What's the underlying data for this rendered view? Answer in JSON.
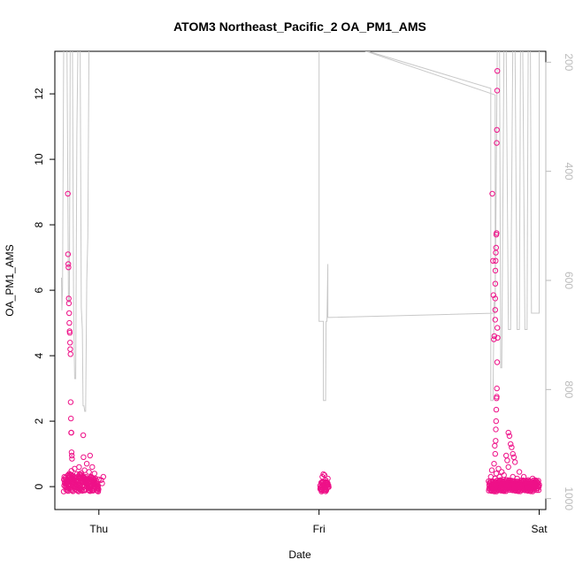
{
  "chart_data": {
    "type": "scatter",
    "title": "ATOM3 Northeast_Pacific_2 OA_PM1_AMS",
    "xlabel": "Date",
    "ylabel": "OA_PM1_AMS",
    "x_ticks": [
      "Thu",
      "Fri",
      "Sat"
    ],
    "xlim": [
      -0.2,
      2.03
    ],
    "ylim": [
      -0.7,
      13.3
    ],
    "y_ticks": [
      0,
      2,
      4,
      6,
      8,
      10,
      12
    ],
    "right_axis": {
      "ylim": [
        1020,
        180
      ],
      "ticks": [
        200,
        400,
        600,
        800,
        1000
      ],
      "color": "#bbbbbb",
      "reversed": true
    },
    "grid": false,
    "colors": {
      "points": "#ee1188",
      "pressure_line": "#c8c8c8"
    },
    "series": [
      {
        "points": [
          [
            -0.15,
            0.12
          ],
          [
            -0.14,
            0.35
          ],
          [
            -0.13,
            0.22
          ],
          [
            -0.125,
            0.48
          ],
          [
            -0.12,
            0.1
          ],
          [
            -0.115,
            0.3
          ],
          [
            -0.11,
            0.55
          ],
          [
            -0.105,
            0.2
          ],
          [
            -0.1,
            0.38
          ],
          [
            -0.095,
            0.15
          ],
          [
            -0.09,
            0.6
          ],
          [
            -0.085,
            0.25
          ],
          [
            -0.08,
            0.42
          ],
          [
            -0.075,
            0.05
          ],
          [
            -0.072,
            0.3
          ],
          [
            -0.141,
            8.95
          ],
          [
            -0.14,
            7.1
          ],
          [
            -0.139,
            6.8
          ],
          [
            -0.138,
            6.7
          ],
          [
            -0.137,
            5.75
          ],
          [
            -0.136,
            5.6
          ],
          [
            -0.135,
            5.3
          ],
          [
            -0.134,
            5.0
          ],
          [
            -0.133,
            4.75
          ],
          [
            -0.132,
            4.7
          ],
          [
            -0.131,
            4.4
          ],
          [
            -0.13,
            4.2
          ],
          [
            -0.129,
            4.05
          ],
          [
            -0.128,
            2.58
          ],
          [
            -0.127,
            2.08
          ],
          [
            -0.126,
            1.65
          ],
          [
            -0.125,
            1.65
          ],
          [
            -0.124,
            1.05
          ],
          [
            -0.123,
            0.95
          ],
          [
            -0.122,
            0.85
          ],
          [
            -0.07,
            0.9
          ],
          [
            -0.065,
            0.5
          ],
          [
            -0.06,
            0.3
          ],
          [
            -0.055,
            0.7
          ],
          [
            -0.05,
            0.2
          ],
          [
            -0.045,
            0.45
          ],
          [
            -0.04,
            0.95
          ],
          [
            -0.035,
            0.3
          ],
          [
            -0.03,
            0.6
          ],
          [
            -0.025,
            0.15
          ],
          [
            -0.02,
            0.4
          ],
          [
            -0.015,
            0.25
          ],
          [
            -0.01,
            0.1
          ],
          [
            -0.071,
            1.57
          ],
          [
            0.02,
            0.3
          ],
          [
            0.015,
            0.1
          ],
          [
            0.01,
            0.2
          ],
          [
            1.01,
            0.12
          ],
          [
            1.015,
            0.3
          ],
          [
            1.02,
            0.05
          ],
          [
            1.025,
            0.35
          ],
          [
            1.03,
            0.2
          ],
          [
            1.035,
            0.1
          ],
          [
            1.04,
            0.25
          ],
          [
            1.02,
            0.38
          ],
          [
            1.018,
            0.15
          ],
          [
            1.78,
            0.3
          ],
          [
            1.785,
            0.5
          ],
          [
            1.79,
            0.15
          ],
          [
            1.795,
            0.7
          ],
          [
            1.8,
            0.25
          ],
          [
            1.805,
            0.4
          ],
          [
            1.81,
            0.1
          ],
          [
            1.815,
            0.55
          ],
          [
            1.82,
            0.3
          ],
          [
            1.825,
            0.2
          ],
          [
            1.83,
            0.45
          ],
          [
            1.835,
            0.1
          ],
          [
            1.84,
            0.35
          ],
          [
            1.85,
            0.2
          ],
          [
            1.86,
            0.6
          ],
          [
            1.87,
            0.15
          ],
          [
            1.88,
            0.3
          ],
          [
            1.89,
            0.1
          ],
          [
            1.9,
            0.25
          ],
          [
            1.91,
            0.45
          ],
          [
            1.92,
            0.15
          ],
          [
            1.93,
            0.3
          ],
          [
            1.94,
            0.05
          ],
          [
            1.95,
            0.2
          ],
          [
            1.96,
            0.1
          ],
          [
            1.97,
            0.25
          ],
          [
            1.98,
            0.08
          ],
          [
            1.99,
            0.15
          ],
          [
            2.0,
            0.05
          ],
          [
            1.787,
            8.95
          ],
          [
            1.79,
            6.9
          ],
          [
            1.792,
            5.85
          ],
          [
            1.794,
            4.5
          ],
          [
            1.796,
            4.6
          ],
          [
            1.798,
            1.25
          ],
          [
            1.8,
            1.0
          ],
          [
            1.81,
            12.7
          ],
          [
            1.809,
            12.1
          ],
          [
            1.808,
            10.9
          ],
          [
            1.807,
            10.5
          ],
          [
            1.806,
            7.75
          ],
          [
            1.805,
            7.7
          ],
          [
            1.804,
            7.3
          ],
          [
            1.803,
            7.15
          ],
          [
            1.802,
            6.9
          ],
          [
            1.801,
            6.6
          ],
          [
            1.8005,
            6.2
          ],
          [
            1.8003,
            5.75
          ],
          [
            1.8002,
            5.4
          ],
          [
            1.8001,
            5.1
          ],
          [
            1.81,
            4.85
          ],
          [
            1.811,
            4.55
          ],
          [
            1.809,
            3.8
          ],
          [
            1.808,
            3.0
          ],
          [
            1.807,
            2.75
          ],
          [
            1.806,
            2.7
          ],
          [
            1.805,
            2.35
          ],
          [
            1.804,
            2.0
          ],
          [
            1.803,
            1.75
          ],
          [
            1.802,
            1.4
          ],
          [
            1.85,
            0.95
          ],
          [
            1.855,
            0.8
          ],
          [
            1.86,
            1.65
          ],
          [
            1.865,
            1.55
          ],
          [
            1.87,
            1.3
          ],
          [
            1.875,
            1.2
          ],
          [
            1.88,
            1.0
          ],
          [
            1.885,
            0.9
          ],
          [
            1.89,
            0.75
          ]
        ]
      }
    ]
  }
}
